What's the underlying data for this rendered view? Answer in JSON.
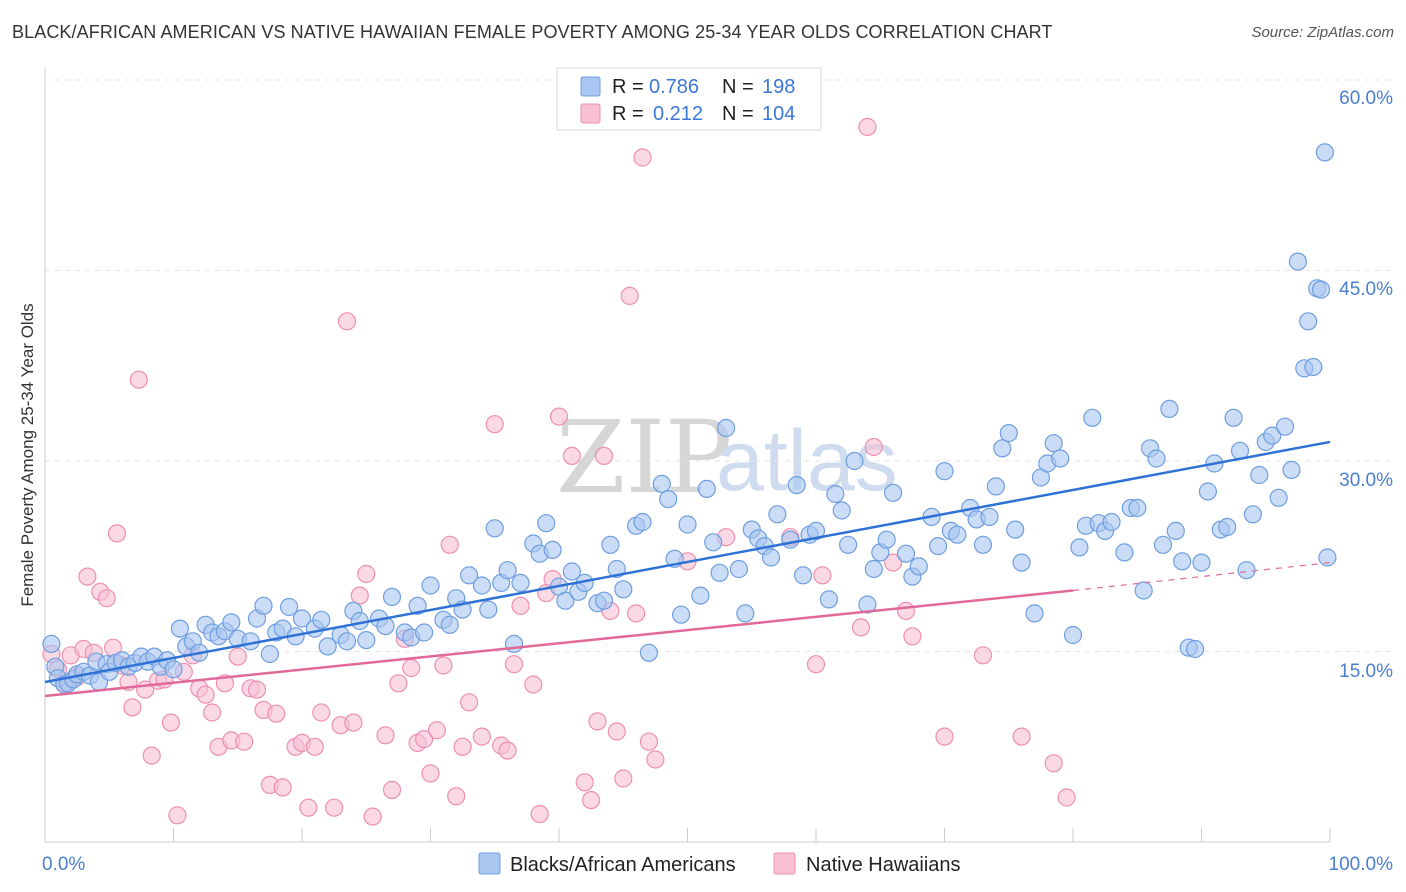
{
  "title": "BLACK/AFRICAN AMERICAN VS NATIVE HAWAIIAN FEMALE POVERTY AMONG 25-34 YEAR OLDS CORRELATION CHART",
  "source": "Source: ZipAtlas.com",
  "watermark": {
    "left": "ZIP",
    "right": "atlas"
  },
  "legend_top": {
    "rows": [
      {
        "r_label": "R =",
        "r_value": "0.786",
        "n_label": "N =",
        "n_value": "198"
      },
      {
        "r_label": "R =",
        "r_value": "0.212",
        "n_label": "N =",
        "n_value": "104"
      }
    ]
  },
  "legend_bottom": {
    "items": [
      "Blacks/African Americans",
      "Native Hawaiians"
    ]
  },
  "colors": {
    "blue_fill": "#a9c6f0",
    "blue_stroke": "#6f9ee0",
    "blue_line": "#2f72d6",
    "pink_fill": "#f7c0d3",
    "pink_stroke": "#ee8fb2",
    "pink_line": "#e0699a",
    "tick_text": "#4a7fd0",
    "grid": "#e4e4e4"
  },
  "chart_data": {
    "type": "scatter",
    "title": "BLACK/AFRICAN AMERICAN VS NATIVE HAWAIIAN FEMALE POVERTY AMONG 25-34 YEAR OLDS CORRELATION CHART",
    "xlabel": "",
    "ylabel": "Female Poverty Among 25-34 Year Olds",
    "xlim": [
      0,
      100
    ],
    "ylim": [
      0,
      60
    ],
    "x_tick_labels": [
      "0.0%",
      "100.0%"
    ],
    "y_ticks": [
      15,
      30,
      45,
      60
    ],
    "y_tick_labels": [
      "15.0%",
      "30.0%",
      "45.0%",
      "60.0%"
    ],
    "grid": true,
    "legend_position": "top-center",
    "series": [
      {
        "name": "Blacks/African Americans",
        "r": 0.786,
        "n": 198,
        "trend": {
          "x": [
            0,
            100
          ],
          "y": [
            12.6,
            31.5
          ]
        },
        "points": [
          [
            0.5,
            15.6
          ],
          [
            0.8,
            13.8
          ],
          [
            1.0,
            12.9
          ],
          [
            1.5,
            12.4
          ],
          [
            1.8,
            12.5
          ],
          [
            2.2,
            12.8
          ],
          [
            2.5,
            13.2
          ],
          [
            3.0,
            13.4
          ],
          [
            3.5,
            13.1
          ],
          [
            4.0,
            14.2
          ],
          [
            4.2,
            12.6
          ],
          [
            4.8,
            14.0
          ],
          [
            5.0,
            13.4
          ],
          [
            5.5,
            14.1
          ],
          [
            6.0,
            14.3
          ],
          [
            6.5,
            13.8
          ],
          [
            7.0,
            14.1
          ],
          [
            7.5,
            14.6
          ],
          [
            8.0,
            14.2
          ],
          [
            8.5,
            14.6
          ],
          [
            9.0,
            13.8
          ],
          [
            9.5,
            14.3
          ],
          [
            10.0,
            13.6
          ],
          [
            10.5,
            16.8
          ],
          [
            11.0,
            15.4
          ],
          [
            11.5,
            15.8
          ],
          [
            12.0,
            14.9
          ],
          [
            12.5,
            17.1
          ],
          [
            13.0,
            16.5
          ],
          [
            13.5,
            16.2
          ],
          [
            14.0,
            16.6
          ],
          [
            14.5,
            17.3
          ],
          [
            15.0,
            16.0
          ],
          [
            16.0,
            15.8
          ],
          [
            16.5,
            17.6
          ],
          [
            17.0,
            18.6
          ],
          [
            17.5,
            14.8
          ],
          [
            18.0,
            16.5
          ],
          [
            18.5,
            16.8
          ],
          [
            19.0,
            18.5
          ],
          [
            19.5,
            16.2
          ],
          [
            20.0,
            17.6
          ],
          [
            21.0,
            16.8
          ],
          [
            21.5,
            17.5
          ],
          [
            22.0,
            15.4
          ],
          [
            23.0,
            16.3
          ],
          [
            23.5,
            15.8
          ],
          [
            24.0,
            18.2
          ],
          [
            24.5,
            17.4
          ],
          [
            25.0,
            15.9
          ],
          [
            26.0,
            17.6
          ],
          [
            26.5,
            17.0
          ],
          [
            27.0,
            19.3
          ],
          [
            28.0,
            16.5
          ],
          [
            28.5,
            16.1
          ],
          [
            29.0,
            18.6
          ],
          [
            29.5,
            16.5
          ],
          [
            30.0,
            20.2
          ],
          [
            31.0,
            17.5
          ],
          [
            31.5,
            17.1
          ],
          [
            32.0,
            19.2
          ],
          [
            32.5,
            18.3
          ],
          [
            33.0,
            21.0
          ],
          [
            34.0,
            20.2
          ],
          [
            34.5,
            18.3
          ],
          [
            35.0,
            24.7
          ],
          [
            35.5,
            20.4
          ],
          [
            36.0,
            21.4
          ],
          [
            36.5,
            15.6
          ],
          [
            37.0,
            20.4
          ],
          [
            38.0,
            23.5
          ],
          [
            38.5,
            22.7
          ],
          [
            39.0,
            25.1
          ],
          [
            39.5,
            23.0
          ],
          [
            40.0,
            20.1
          ],
          [
            40.5,
            19.0
          ],
          [
            41.0,
            21.3
          ],
          [
            41.5,
            19.7
          ],
          [
            42.0,
            20.4
          ],
          [
            43.0,
            18.8
          ],
          [
            43.5,
            19.0
          ],
          [
            44.0,
            23.4
          ],
          [
            44.5,
            21.5
          ],
          [
            45.0,
            19.9
          ],
          [
            46.0,
            24.9
          ],
          [
            46.5,
            25.2
          ],
          [
            47.0,
            14.9
          ],
          [
            48.0,
            28.2
          ],
          [
            48.5,
            27.0
          ],
          [
            49.0,
            22.3
          ],
          [
            49.5,
            17.9
          ],
          [
            50.0,
            25.0
          ],
          [
            51.0,
            19.4
          ],
          [
            51.5,
            27.8
          ],
          [
            52.0,
            23.6
          ],
          [
            52.5,
            21.2
          ],
          [
            53.0,
            32.6
          ],
          [
            54.0,
            21.5
          ],
          [
            54.5,
            18.0
          ],
          [
            55.0,
            24.6
          ],
          [
            55.5,
            23.9
          ],
          [
            56.0,
            23.3
          ],
          [
            56.5,
            22.4
          ],
          [
            57.0,
            25.8
          ],
          [
            58.0,
            23.8
          ],
          [
            58.5,
            28.1
          ],
          [
            59.0,
            21.0
          ],
          [
            59.5,
            24.2
          ],
          [
            60.0,
            24.5
          ],
          [
            61.0,
            19.1
          ],
          [
            61.5,
            27.4
          ],
          [
            62.0,
            26.1
          ],
          [
            62.5,
            23.4
          ],
          [
            63.0,
            30.0
          ],
          [
            64.0,
            18.7
          ],
          [
            64.5,
            21.5
          ],
          [
            65.0,
            22.8
          ],
          [
            65.5,
            23.8
          ],
          [
            66.0,
            27.5
          ],
          [
            67.0,
            22.7
          ],
          [
            67.5,
            20.9
          ],
          [
            68.0,
            21.7
          ],
          [
            69.0,
            25.6
          ],
          [
            69.5,
            23.3
          ],
          [
            70.0,
            29.2
          ],
          [
            70.5,
            24.5
          ],
          [
            71.0,
            24.2
          ],
          [
            72.0,
            26.3
          ],
          [
            72.5,
            25.4
          ],
          [
            73.0,
            23.4
          ],
          [
            73.5,
            25.6
          ],
          [
            74.0,
            28.0
          ],
          [
            74.5,
            31.0
          ],
          [
            75.0,
            32.2
          ],
          [
            75.5,
            24.6
          ],
          [
            76.0,
            22.0
          ],
          [
            77.0,
            18.0
          ],
          [
            77.5,
            28.7
          ],
          [
            78.0,
            29.8
          ],
          [
            78.5,
            31.4
          ],
          [
            79.0,
            30.2
          ],
          [
            80.0,
            16.3
          ],
          [
            80.5,
            23.2
          ],
          [
            81.0,
            24.9
          ],
          [
            81.5,
            33.4
          ],
          [
            82.0,
            25.1
          ],
          [
            82.5,
            24.5
          ],
          [
            83.0,
            25.2
          ],
          [
            84.0,
            22.8
          ],
          [
            84.5,
            26.3
          ],
          [
            85.0,
            26.3
          ],
          [
            85.5,
            19.8
          ],
          [
            86.0,
            31.0
          ],
          [
            86.5,
            30.2
          ],
          [
            87.0,
            23.4
          ],
          [
            87.5,
            34.1
          ],
          [
            88.0,
            24.5
          ],
          [
            88.5,
            22.1
          ],
          [
            89.0,
            15.3
          ],
          [
            89.5,
            15.2
          ],
          [
            90.0,
            22.0
          ],
          [
            90.5,
            27.6
          ],
          [
            91.0,
            29.8
          ],
          [
            91.5,
            24.6
          ],
          [
            92.0,
            24.8
          ],
          [
            92.5,
            33.4
          ],
          [
            93.0,
            30.8
          ],
          [
            93.5,
            21.4
          ],
          [
            94.0,
            25.8
          ],
          [
            94.5,
            28.9
          ],
          [
            95.0,
            31.5
          ],
          [
            95.5,
            32.0
          ],
          [
            96.0,
            27.1
          ],
          [
            96.5,
            32.7
          ],
          [
            97.0,
            29.3
          ],
          [
            97.5,
            45.7
          ],
          [
            98.0,
            37.3
          ],
          [
            98.3,
            41.0
          ],
          [
            98.7,
            37.4
          ],
          [
            99.0,
            43.6
          ],
          [
            99.3,
            43.5
          ],
          [
            99.6,
            54.3
          ],
          [
            99.8,
            22.4
          ]
        ]
      },
      {
        "name": "Native Hawaiians",
        "r": 0.212,
        "n": 104,
        "trend": {
          "x": [
            0,
            80
          ],
          "y": [
            11.5,
            19.8
          ]
        },
        "trend_dashed_extension": {
          "x": [
            80,
            100
          ],
          "y": [
            19.8,
            22.0
          ]
        },
        "points": [
          [
            0.5,
            14.8
          ],
          [
            1.0,
            13.6
          ],
          [
            1.5,
            12.5
          ],
          [
            2.0,
            14.7
          ],
          [
            2.5,
            13.0
          ],
          [
            3.0,
            15.2
          ],
          [
            3.3,
            20.9
          ],
          [
            3.8,
            14.9
          ],
          [
            4.3,
            19.7
          ],
          [
            4.8,
            19.2
          ],
          [
            5.3,
            15.3
          ],
          [
            5.6,
            24.3
          ],
          [
            6.0,
            13.9
          ],
          [
            6.5,
            12.6
          ],
          [
            6.8,
            10.6
          ],
          [
            7.3,
            36.4
          ],
          [
            7.8,
            12.0
          ],
          [
            8.3,
            6.8
          ],
          [
            8.8,
            12.7
          ],
          [
            9.3,
            12.8
          ],
          [
            9.8,
            9.4
          ],
          [
            10.3,
            2.1
          ],
          [
            10.8,
            13.4
          ],
          [
            11.5,
            14.7
          ],
          [
            12.0,
            12.1
          ],
          [
            12.5,
            11.6
          ],
          [
            13.0,
            10.2
          ],
          [
            13.5,
            7.5
          ],
          [
            14.0,
            12.5
          ],
          [
            14.5,
            8.0
          ],
          [
            15.0,
            14.6
          ],
          [
            15.5,
            7.9
          ],
          [
            16.0,
            12.1
          ],
          [
            16.5,
            12.0
          ],
          [
            17.0,
            10.4
          ],
          [
            17.5,
            4.5
          ],
          [
            18.0,
            10.1
          ],
          [
            18.5,
            4.3
          ],
          [
            19.5,
            7.5
          ],
          [
            20.0,
            7.8
          ],
          [
            20.5,
            2.7
          ],
          [
            21.0,
            7.5
          ],
          [
            21.5,
            10.2
          ],
          [
            22.5,
            2.7
          ],
          [
            23.0,
            9.2
          ],
          [
            23.5,
            41.0
          ],
          [
            24.0,
            9.4
          ],
          [
            24.5,
            19.4
          ],
          [
            25.0,
            21.1
          ],
          [
            25.5,
            2.0
          ],
          [
            26.5,
            8.4
          ],
          [
            27.0,
            4.1
          ],
          [
            27.5,
            12.5
          ],
          [
            28.0,
            16.0
          ],
          [
            28.5,
            13.7
          ],
          [
            29.0,
            7.8
          ],
          [
            29.5,
            8.1
          ],
          [
            30.0,
            5.4
          ],
          [
            30.5,
            8.8
          ],
          [
            31.0,
            13.9
          ],
          [
            31.5,
            23.4
          ],
          [
            32.0,
            3.6
          ],
          [
            32.5,
            7.5
          ],
          [
            33.0,
            11.0
          ],
          [
            34.0,
            8.3
          ],
          [
            35.0,
            32.9
          ],
          [
            35.5,
            7.6
          ],
          [
            36.0,
            7.2
          ],
          [
            36.5,
            14.0
          ],
          [
            37.0,
            18.6
          ],
          [
            38.0,
            12.4
          ],
          [
            38.5,
            2.2
          ],
          [
            39.0,
            19.6
          ],
          [
            39.5,
            20.7
          ],
          [
            40.0,
            33.5
          ],
          [
            41.0,
            30.4
          ],
          [
            42.0,
            4.7
          ],
          [
            42.5,
            3.3
          ],
          [
            43.0,
            9.5
          ],
          [
            43.5,
            30.4
          ],
          [
            44.0,
            18.2
          ],
          [
            44.5,
            8.7
          ],
          [
            45.0,
            5.0
          ],
          [
            45.5,
            43.0
          ],
          [
            46.0,
            18.0
          ],
          [
            46.5,
            53.9
          ],
          [
            47.0,
            7.9
          ],
          [
            47.5,
            6.5
          ],
          [
            50.0,
            22.1
          ],
          [
            53.0,
            24.0
          ],
          [
            58.0,
            24.0
          ],
          [
            60.0,
            14.0
          ],
          [
            60.5,
            21.0
          ],
          [
            63.5,
            16.9
          ],
          [
            64.0,
            56.3
          ],
          [
            64.5,
            31.1
          ],
          [
            66.0,
            22.0
          ],
          [
            67.0,
            18.2
          ],
          [
            67.5,
            16.2
          ],
          [
            70.0,
            8.3
          ],
          [
            73.0,
            14.7
          ],
          [
            76.0,
            8.3
          ],
          [
            78.5,
            6.2
          ],
          [
            79.5,
            3.5
          ]
        ]
      }
    ]
  }
}
